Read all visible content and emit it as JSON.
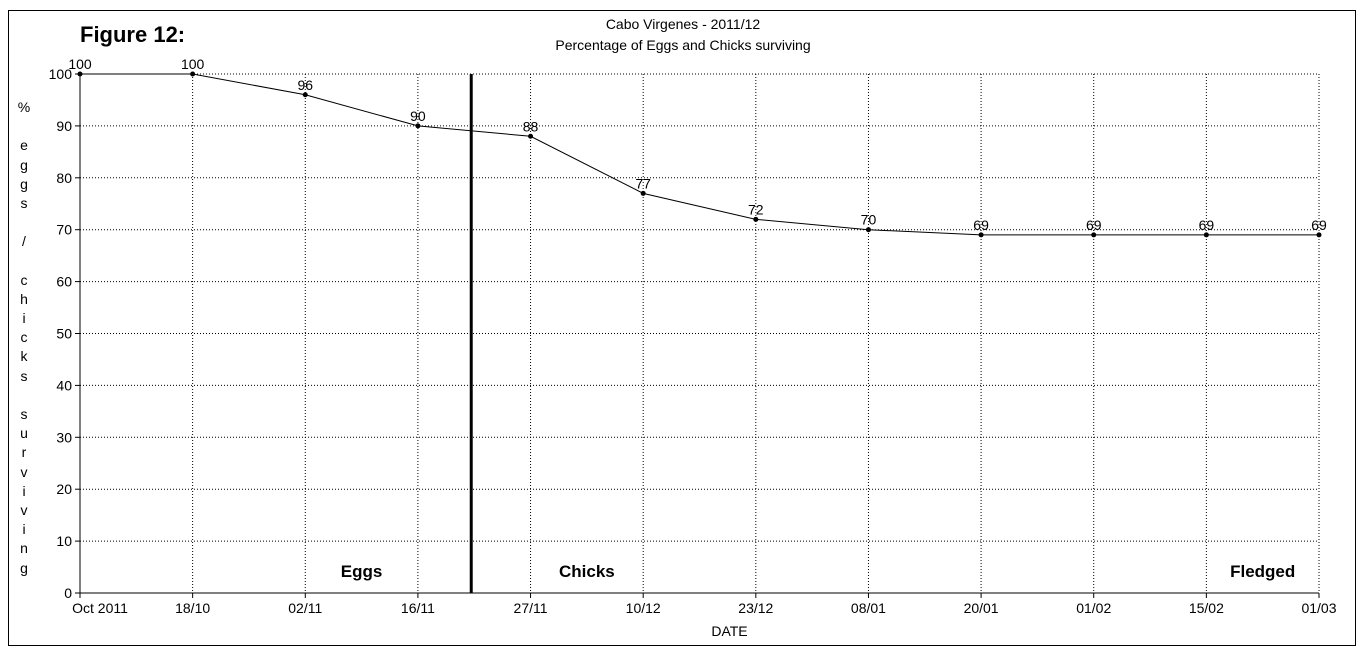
{
  "figure_label": "Figure 12:",
  "chart_data": {
    "type": "line",
    "title": "Cabo Virgenes - 2011/12",
    "subtitle": "Percentage of Eggs and Chicks surviving",
    "xlabel": "DATE",
    "ylabel": "% eggs / chicks surviving",
    "ylabel_chars": [
      "%",
      "",
      "e",
      "g",
      "g",
      "s",
      "",
      "/",
      "",
      "c",
      "h",
      "i",
      "c",
      "k",
      "s",
      "",
      "s",
      "u",
      "r",
      "v",
      "i",
      "v",
      "i",
      "n",
      "g"
    ],
    "categories": [
      "Oct 2011",
      "18/10",
      "02/11",
      "16/11",
      "27/11",
      "10/12",
      "23/12",
      "08/01",
      "20/01",
      "01/02",
      "15/02",
      "01/03"
    ],
    "values": [
      100,
      100,
      96,
      90,
      88,
      77,
      72,
      70,
      69,
      69,
      69,
      69
    ],
    "ylim": [
      0,
      100
    ],
    "yticks": [
      0,
      10,
      20,
      30,
      40,
      50,
      60,
      70,
      80,
      90,
      100
    ],
    "grid": true,
    "divider_between": [
      "16/11",
      "27/11"
    ],
    "annotations": [
      "Eggs",
      "Chicks",
      "Fledged"
    ],
    "colors": {
      "line": "#000000",
      "grid": "#000000",
      "background": "#ffffff"
    }
  }
}
